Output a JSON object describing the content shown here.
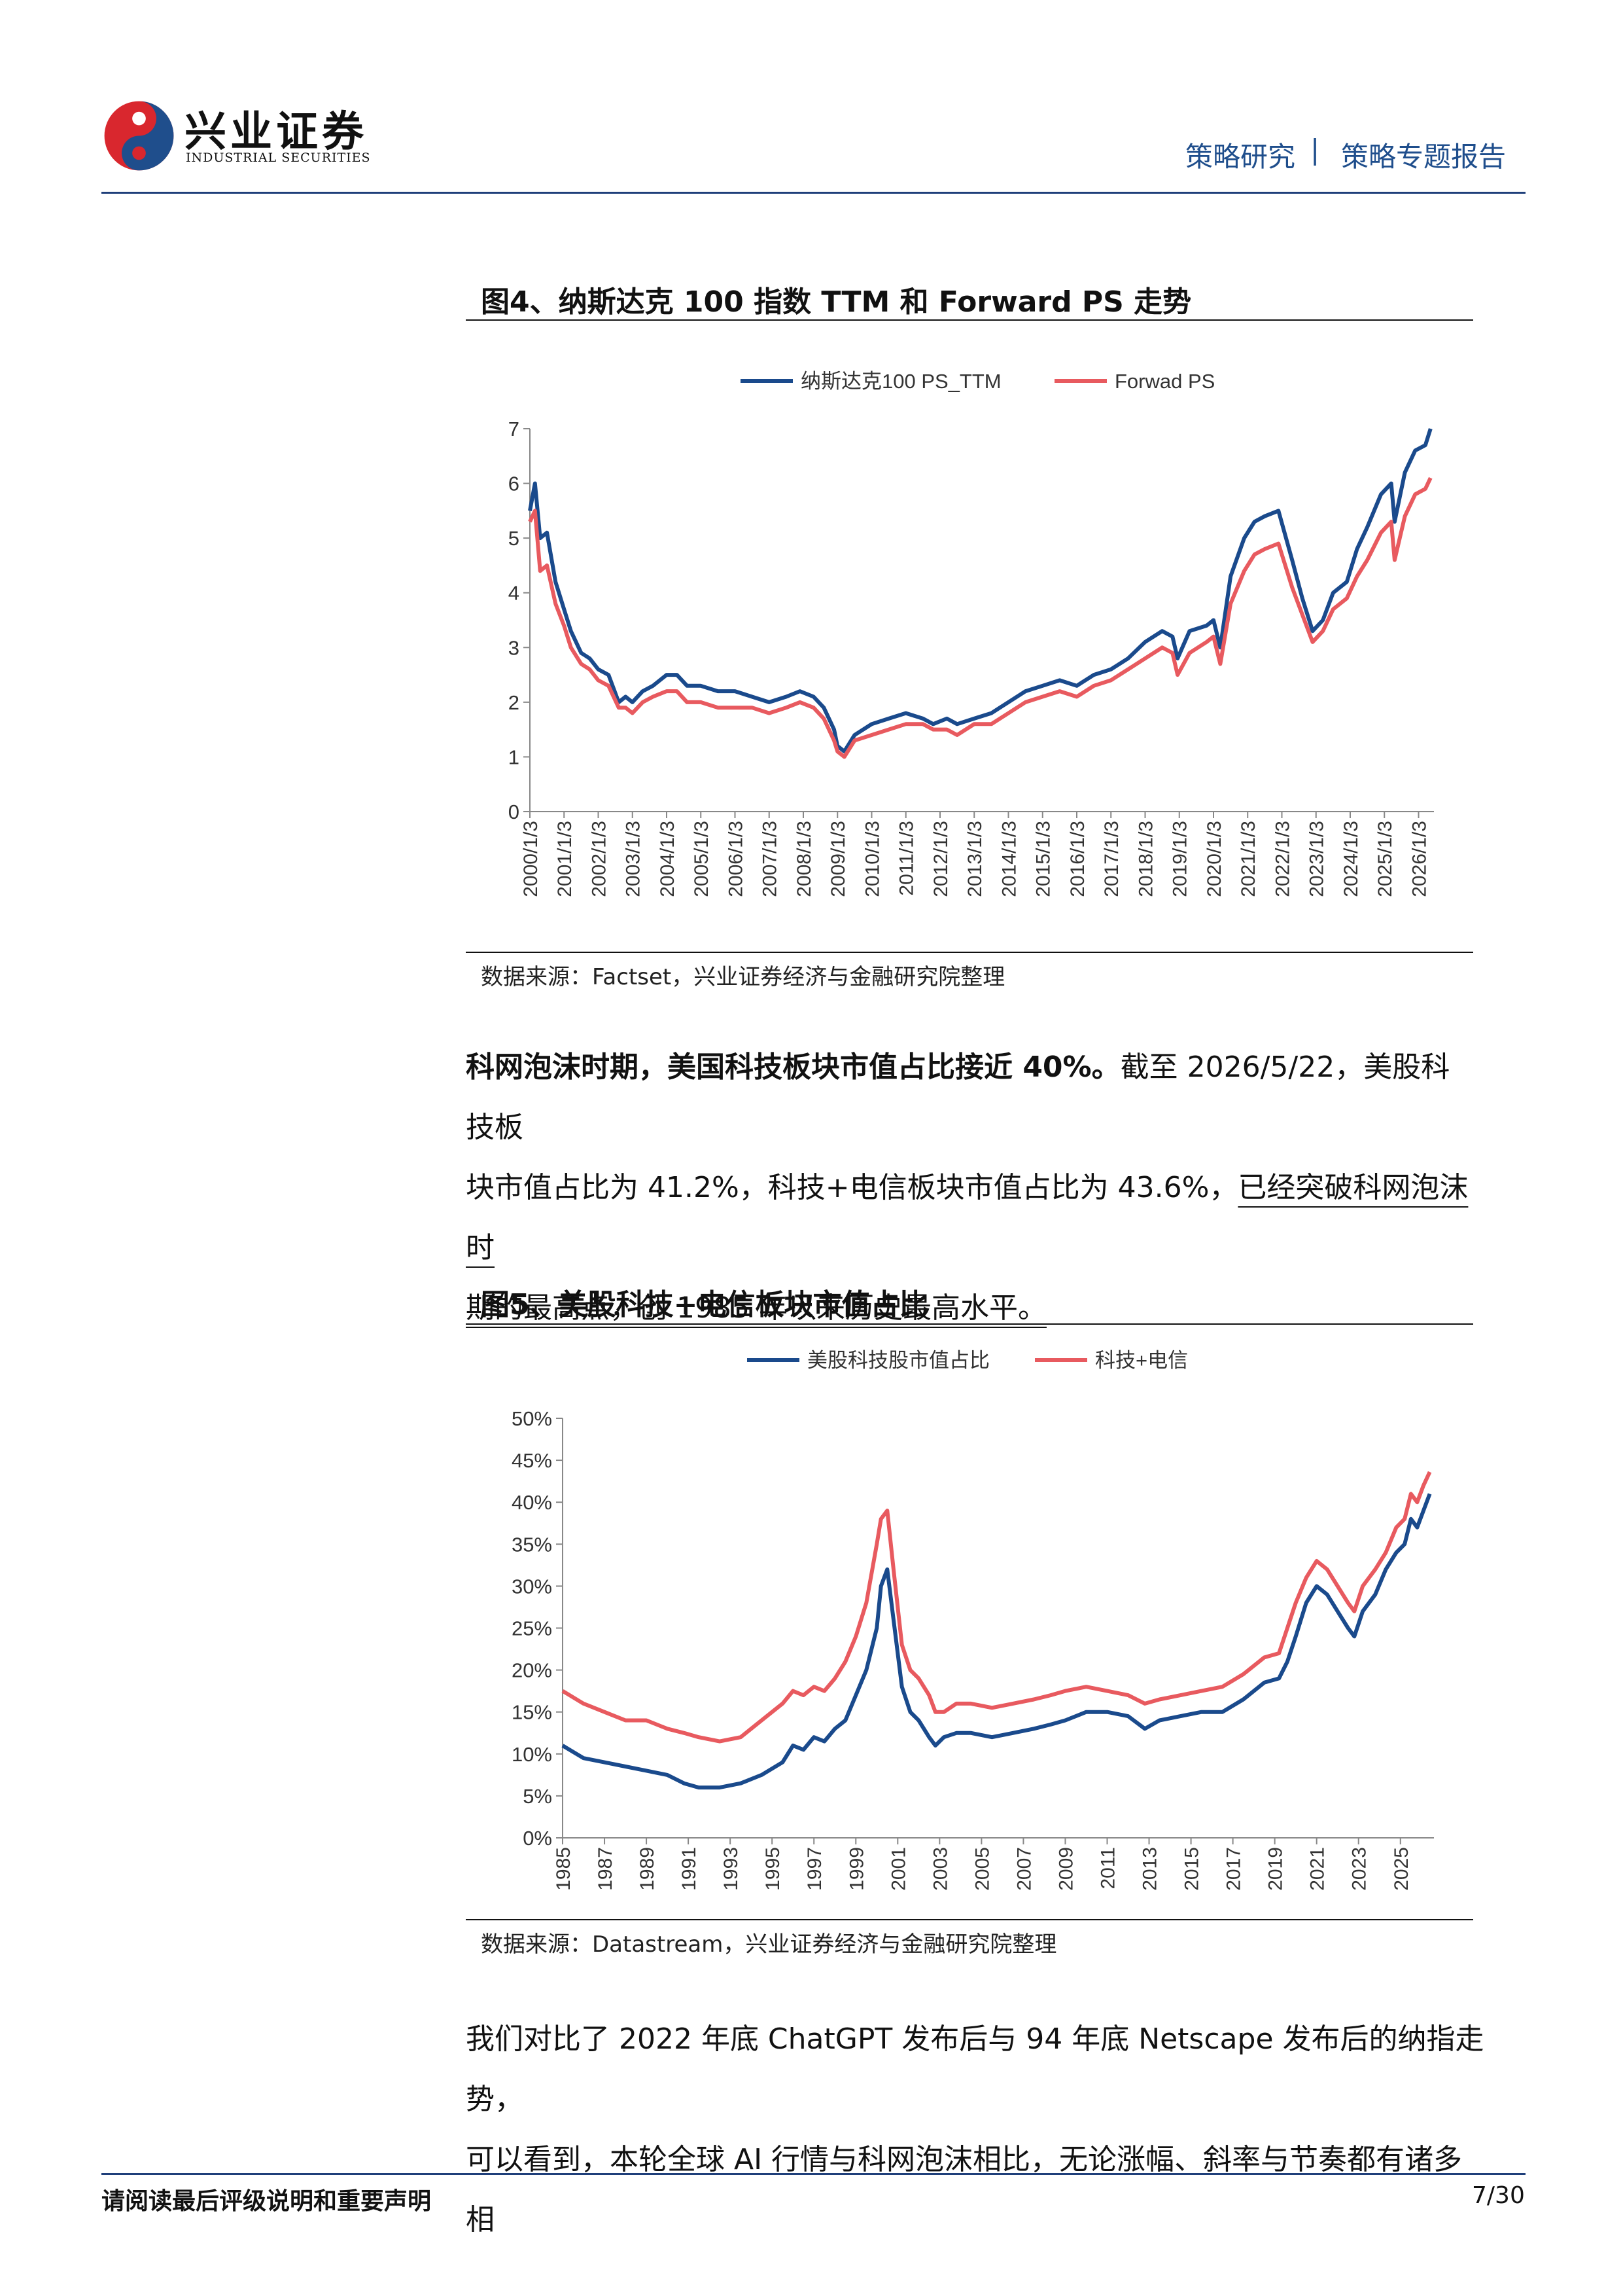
{
  "header": {
    "logo_cn": "兴业证券",
    "logo_en": "INDUSTRIAL SECURITIES",
    "section": "策略研究",
    "separator": "|",
    "report_type": "策略专题报告"
  },
  "figure4": {
    "title": "图4、纳斯达克 100 指数 TTM 和 Forward PS 走势",
    "source": "数据来源：Factset，兴业证券经济与金融研究院整理",
    "chart_data": {
      "type": "line",
      "title": "",
      "xlabel": "",
      "ylabel": "",
      "ylim": [
        0,
        7
      ],
      "yticks": [
        "0",
        "1",
        "2",
        "3",
        "4",
        "5",
        "6",
        "7"
      ],
      "xticks": [
        "2000/1/3",
        "2001/1/3",
        "2002/1/3",
        "2003/1/3",
        "2004/1/3",
        "2005/1/3",
        "2006/1/3",
        "2007/1/3",
        "2008/1/3",
        "2009/1/3",
        "2010/1/3",
        "2011/1/3",
        "2012/1/3",
        "2013/1/3",
        "2014/1/3",
        "2015/1/3",
        "2016/1/3",
        "2017/1/3",
        "2018/1/3",
        "2019/1/3",
        "2020/1/3",
        "2021/1/3",
        "2022/1/3",
        "2023/1/3",
        "2024/1/3",
        "2025/1/3",
        "2026/1/3"
      ],
      "x": [
        2000.0,
        2000.15,
        2000.3,
        2000.5,
        2000.75,
        2001.0,
        2001.2,
        2001.5,
        2001.75,
        2002.0,
        2002.3,
        2002.6,
        2002.8,
        2003.0,
        2003.3,
        2003.6,
        2004.0,
        2004.3,
        2004.6,
        2005.0,
        2005.5,
        2006.0,
        2006.5,
        2007.0,
        2007.5,
        2007.9,
        2008.3,
        2008.6,
        2008.9,
        2009.0,
        2009.2,
        2009.5,
        2010.0,
        2010.5,
        2011.0,
        2011.5,
        2011.8,
        2012.2,
        2012.5,
        2013.0,
        2013.5,
        2014.0,
        2014.5,
        2015.0,
        2015.5,
        2016.0,
        2016.5,
        2017.0,
        2017.5,
        2018.0,
        2018.5,
        2018.8,
        2018.95,
        2019.3,
        2019.8,
        2020.0,
        2020.2,
        2020.5,
        2020.9,
        2021.2,
        2021.5,
        2021.9,
        2022.3,
        2022.6,
        2022.9,
        2023.2,
        2023.5,
        2023.9,
        2024.2,
        2024.5,
        2024.9,
        2025.2,
        2025.3,
        2025.6,
        2025.9,
        2026.2,
        2026.35
      ],
      "series": [
        {
          "name": "纳斯达克100 PS_TTM",
          "color": "#1a4a8c",
          "values": [
            5.5,
            6.0,
            5.0,
            5.1,
            4.2,
            3.7,
            3.3,
            2.9,
            2.8,
            2.6,
            2.5,
            2.0,
            2.1,
            2.0,
            2.2,
            2.3,
            2.5,
            2.5,
            2.3,
            2.3,
            2.2,
            2.2,
            2.1,
            2.0,
            2.1,
            2.2,
            2.1,
            1.9,
            1.5,
            1.2,
            1.1,
            1.4,
            1.6,
            1.7,
            1.8,
            1.7,
            1.6,
            1.7,
            1.6,
            1.7,
            1.8,
            2.0,
            2.2,
            2.3,
            2.4,
            2.3,
            2.5,
            2.6,
            2.8,
            3.1,
            3.3,
            3.2,
            2.8,
            3.3,
            3.4,
            3.5,
            3.0,
            4.3,
            5.0,
            5.3,
            5.4,
            5.5,
            4.6,
            3.9,
            3.3,
            3.5,
            4.0,
            4.2,
            4.8,
            5.2,
            5.8,
            6.0,
            5.3,
            6.2,
            6.6,
            6.7,
            7.0
          ]
        },
        {
          "name": "Forwad PS",
          "color": "#e85a5f",
          "values": [
            5.3,
            5.5,
            4.4,
            4.5,
            3.8,
            3.4,
            3.0,
            2.7,
            2.6,
            2.4,
            2.3,
            1.9,
            1.9,
            1.8,
            2.0,
            2.1,
            2.2,
            2.2,
            2.0,
            2.0,
            1.9,
            1.9,
            1.9,
            1.8,
            1.9,
            2.0,
            1.9,
            1.7,
            1.3,
            1.1,
            1.0,
            1.3,
            1.4,
            1.5,
            1.6,
            1.6,
            1.5,
            1.5,
            1.4,
            1.6,
            1.6,
            1.8,
            2.0,
            2.1,
            2.2,
            2.1,
            2.3,
            2.4,
            2.6,
            2.8,
            3.0,
            2.9,
            2.5,
            2.9,
            3.1,
            3.2,
            2.7,
            3.8,
            4.4,
            4.7,
            4.8,
            4.9,
            4.1,
            3.6,
            3.1,
            3.3,
            3.7,
            3.9,
            4.3,
            4.6,
            5.1,
            5.3,
            4.6,
            5.4,
            5.8,
            5.9,
            6.1
          ]
        }
      ],
      "legend": "top"
    }
  },
  "paragraph1": {
    "bold_lead": "科网泡沫时期，美国科技板块市值占比接近 40%。",
    "text1": "截至 2026/5/22，美股科技板",
    "text2": "块市值占比为 41.2%，科技+电信板块市值占比为 43.6%，",
    "underlined1": "已经突破科网泡沫时",
    "underlined2": "期的最高点，创 1985 年以来历史最高水平。"
  },
  "figure5": {
    "title": "图5、美股科技+电信板块市值占比",
    "source": "数据来源：Datastream，兴业证券经济与金融研究院整理",
    "chart_data": {
      "type": "line",
      "title": "",
      "xlabel": "",
      "ylabel": "",
      "ylim": [
        0,
        50
      ],
      "yticks": [
        "0%",
        "5%",
        "10%",
        "15%",
        "20%",
        "25%",
        "30%",
        "35%",
        "40%",
        "45%",
        "50%"
      ],
      "xticks": [
        "1985",
        "1987",
        "1989",
        "1991",
        "1993",
        "1995",
        "1997",
        "1999",
        "2001",
        "2003",
        "2005",
        "2007",
        "2009",
        "2011",
        "2013",
        "2015",
        "2017",
        "2019",
        "2021",
        "2023",
        "2025"
      ],
      "x": [
        1985.0,
        1986.0,
        1987.0,
        1988.0,
        1989.0,
        1990.0,
        1990.8,
        1991.5,
        1992.5,
        1993.5,
        1994.5,
        1995.5,
        1996.0,
        1996.5,
        1997.0,
        1997.5,
        1998.0,
        1998.5,
        1999.0,
        1999.5,
        2000.0,
        2000.2,
        2000.5,
        2000.8,
        2001.2,
        2001.6,
        2002.0,
        2002.5,
        2002.8,
        2003.2,
        2003.8,
        2004.5,
        2005.5,
        2006.5,
        2007.5,
        2008.3,
        2009.0,
        2010.0,
        2011.0,
        2012.0,
        2012.8,
        2013.5,
        2014.5,
        2015.5,
        2016.5,
        2017.5,
        2018.5,
        2019.2,
        2019.6,
        2020.0,
        2020.5,
        2021.0,
        2021.5,
        2022.0,
        2022.5,
        2022.8,
        2023.2,
        2023.8,
        2024.3,
        2024.8,
        2025.2,
        2025.5,
        2025.8,
        2026.1,
        2026.4
      ],
      "series": [
        {
          "name": "美股科技股市值占比",
          "color": "#1a4a8c",
          "values": [
            11,
            9.5,
            9,
            8.5,
            8,
            7.5,
            6.5,
            6,
            6,
            6.5,
            7.5,
            9,
            11,
            10.5,
            12,
            11.5,
            13,
            14,
            17,
            20,
            25,
            30,
            32,
            26,
            18,
            15,
            14,
            12,
            11,
            12,
            12.5,
            12.5,
            12,
            12.5,
            13,
            13.5,
            14,
            15,
            15,
            14.5,
            13,
            14,
            14.5,
            15,
            15,
            16.5,
            18.5,
            19,
            21,
            24,
            28,
            30,
            29,
            27,
            25,
            24,
            27,
            29,
            32,
            34,
            35,
            38,
            37,
            39,
            41
          ]
        },
        {
          "name": "科技+电信",
          "color": "#e85a5f",
          "values": [
            17.5,
            16,
            15,
            14,
            14,
            13,
            12.5,
            12,
            11.5,
            12,
            14,
            16,
            17.5,
            17,
            18,
            17.5,
            19,
            21,
            24,
            28,
            35,
            38,
            39,
            32,
            23,
            20,
            19,
            17,
            15,
            15,
            16,
            16,
            15.5,
            16,
            16.5,
            17,
            17.5,
            18,
            17.5,
            17,
            16,
            16.5,
            17,
            17.5,
            18,
            19.5,
            21.5,
            22,
            25,
            28,
            31,
            33,
            32,
            30,
            28,
            27,
            30,
            32,
            34,
            37,
            38,
            41,
            40,
            42,
            43.6
          ]
        }
      ],
      "legend": "top"
    }
  },
  "paragraph2": {
    "line1": "我们对比了 2022 年底 ChatGPT 发布后与 94 年底 Netscape 发布后的纳指走势，",
    "line2": "可以看到，本轮全球 AI 行情与科网泡沫相比，无论涨幅、斜率与节奏都有诸多相"
  },
  "footer": {
    "disclaimer": "请阅读最后评级说明和重要声明",
    "page": "7/30"
  }
}
